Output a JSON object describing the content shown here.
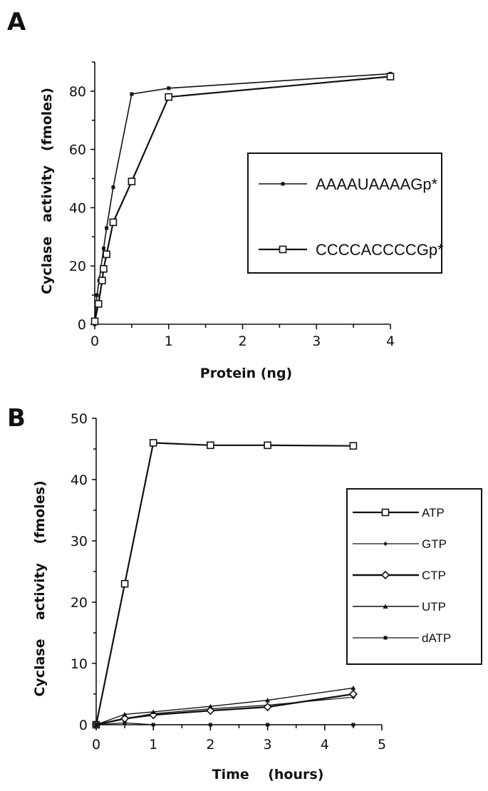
{
  "chart_data": [
    {
      "panel": "A",
      "type": "line",
      "xlabel": "Protein (ng)",
      "ylabel": "Cyclase   activity   (fmoles)",
      "xlim": [
        0,
        4
      ],
      "ylim": [
        0,
        90
      ],
      "xticks": [
        0,
        1,
        2,
        3,
        4
      ],
      "yticks": [
        0,
        20,
        40,
        60,
        80
      ],
      "legend": "right-middle",
      "grid": false,
      "series": [
        {
          "name": "AAAAUAAAAGp*",
          "marker": "filled-square-small",
          "points": [
            [
              0,
              0
            ],
            [
              0.03,
              10
            ],
            [
              0.06,
              15
            ],
            [
              0.12,
              26
            ],
            [
              0.16,
              33
            ],
            [
              0.25,
              47
            ],
            [
              0.5,
              79
            ],
            [
              1,
              81
            ],
            [
              4,
              86
            ]
          ]
        },
        {
          "name": "CCCCACCCCGp*",
          "marker": "open-square",
          "points": [
            [
              0,
              1
            ],
            [
              0.05,
              7
            ],
            [
              0.1,
              15
            ],
            [
              0.12,
              19
            ],
            [
              0.16,
              24
            ],
            [
              0.25,
              35
            ],
            [
              0.5,
              49
            ],
            [
              1,
              78
            ],
            [
              4,
              85
            ]
          ]
        }
      ]
    },
    {
      "panel": "B",
      "type": "line",
      "xlabel": "Time    (hours)",
      "ylabel": "Cyclase    activity    (fmoles)",
      "xlim": [
        0,
        5
      ],
      "ylim": [
        0,
        50
      ],
      "xticks": [
        0,
        1,
        2,
        3,
        4,
        5
      ],
      "yticks": [
        0,
        10,
        20,
        30,
        40,
        50
      ],
      "legend": "right-middle",
      "grid": false,
      "series": [
        {
          "name": "ATP",
          "marker": "open-square",
          "points": [
            [
              0,
              0
            ],
            [
              0.5,
              23
            ],
            [
              1,
              46
            ],
            [
              2,
              45.6
            ],
            [
              3,
              45.6
            ],
            [
              4.5,
              45.5
            ]
          ]
        },
        {
          "name": "GTP",
          "marker": "small-diamond",
          "points": [
            [
              0,
              0
            ],
            [
              0.5,
              1
            ],
            [
              1,
              1.8
            ],
            [
              2,
              2.6
            ],
            [
              3,
              3.2
            ],
            [
              4.5,
              4.5
            ]
          ]
        },
        {
          "name": "CTP",
          "marker": "open-diamond",
          "points": [
            [
              0,
              0
            ],
            [
              0.5,
              1
            ],
            [
              1,
              1.6
            ],
            [
              2,
              2.3
            ],
            [
              3,
              2.9
            ],
            [
              4.5,
              5
            ]
          ]
        },
        {
          "name": "UTP",
          "marker": "filled-triangle",
          "points": [
            [
              0,
              0
            ],
            [
              0.5,
              1.7
            ],
            [
              1,
              2.1
            ],
            [
              2,
              3
            ],
            [
              3,
              4
            ],
            [
              4.5,
              6
            ]
          ]
        },
        {
          "name": "dATP",
          "marker": "filled-square-small",
          "points": [
            [
              0,
              0
            ],
            [
              0.5,
              0.3
            ],
            [
              1,
              0
            ],
            [
              2,
              0
            ],
            [
              3,
              0
            ],
            [
              4.5,
              0
            ]
          ]
        }
      ]
    }
  ]
}
